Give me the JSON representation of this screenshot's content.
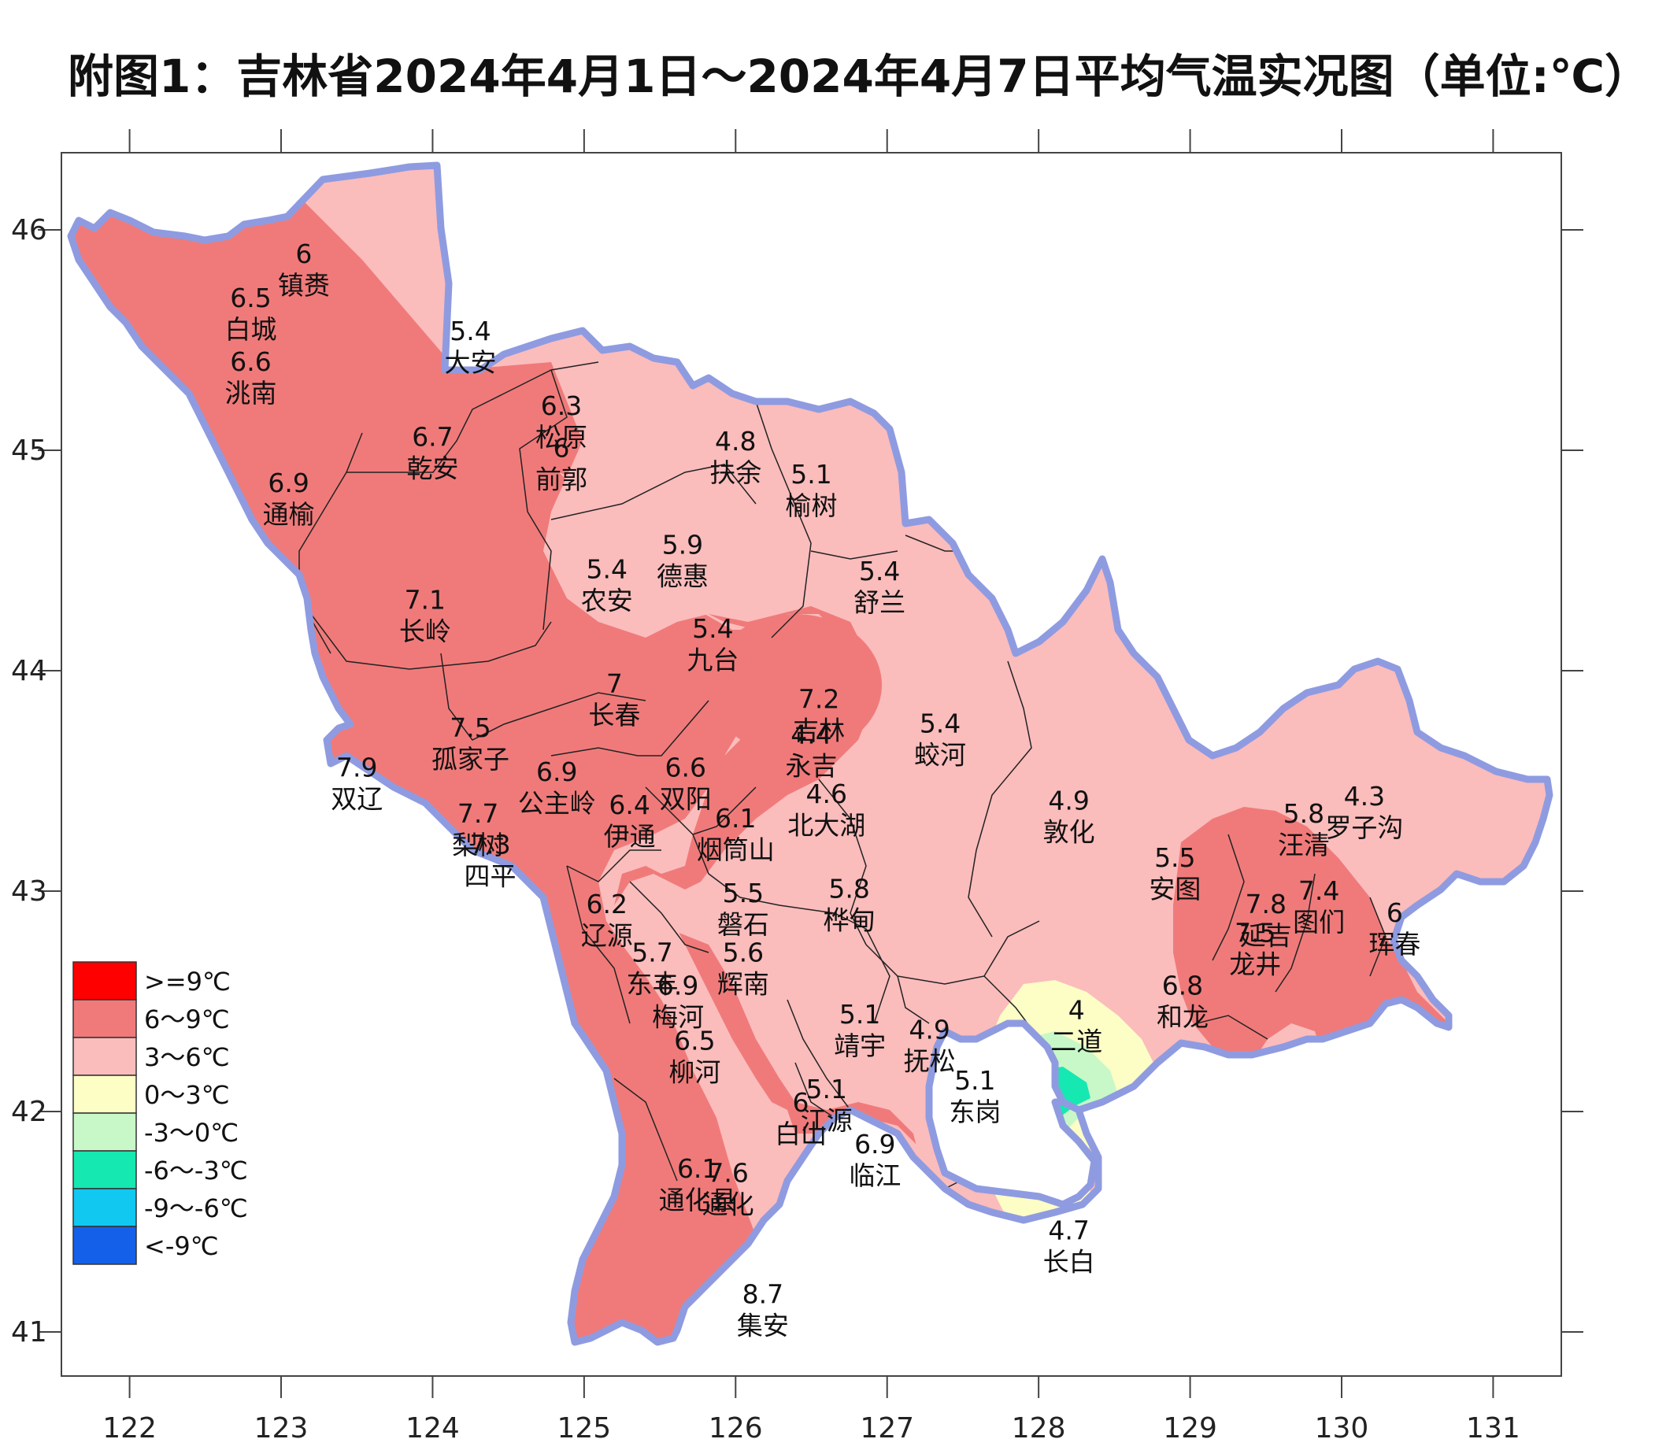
{
  "title": "附图1：吉林省2024年4月1日～2024年4月7日平均气温实况图（单位:℃）",
  "axes": {
    "lon_ticks": [
      "122",
      "123",
      "124",
      "125",
      "126",
      "127",
      "128",
      "129",
      "130",
      "131"
    ],
    "lat_ticks": [
      "46",
      "45",
      "44",
      "43",
      "42",
      "41"
    ],
    "lon_range": [
      121.55,
      131.45
    ],
    "lat_range": [
      40.8,
      46.35
    ]
  },
  "colors": {
    "band_9_plus": "#ff0000",
    "band_6_9": "#f07a7a",
    "band_3_6": "#fbbcbc",
    "band_0_3": "#fdfdc6",
    "band_m3_0": "#c8f8c8",
    "band_m6_m3": "#16e8b2",
    "band_m9_m6": "#10c8f0",
    "band_lt_m9": "#1460e8",
    "province_border": "#8f9be0",
    "county_line": "#222222"
  },
  "legend": [
    {
      "label": ">=9℃",
      "color": "#ff0000"
    },
    {
      "label": "6～9℃",
      "color": "#f07a7a"
    },
    {
      "label": "3～6℃",
      "color": "#fbbcbc"
    },
    {
      "label": "0～3℃",
      "color": "#fdfdc6"
    },
    {
      "label": "-3～0℃",
      "color": "#c8f8c8"
    },
    {
      "label": "-6～-3℃",
      "color": "#16e8b2"
    },
    {
      "label": "-9～-6℃",
      "color": "#10c8f0"
    },
    {
      "label": "<-9℃",
      "color": "#1460e8"
    }
  ],
  "stations": [
    {
      "name": "镇赉",
      "value": "6",
      "lon": 123.15,
      "lat": 45.85
    },
    {
      "name": "白城",
      "value": "6.5",
      "lon": 122.8,
      "lat": 45.65
    },
    {
      "name": "洮南",
      "value": "6.6",
      "lon": 122.8,
      "lat": 45.36
    },
    {
      "name": "大安",
      "value": "5.4",
      "lon": 124.25,
      "lat": 45.5
    },
    {
      "name": "松原",
      "value": "6.3",
      "lon": 124.85,
      "lat": 45.16
    },
    {
      "name": "乾安",
      "value": "6.7",
      "lon": 124.0,
      "lat": 45.02
    },
    {
      "name": "前郭",
      "value": "6",
      "lon": 124.85,
      "lat": 44.97
    },
    {
      "name": "通榆",
      "value": "6.9",
      "lon": 123.05,
      "lat": 44.81
    },
    {
      "name": "扶余",
      "value": "4.8",
      "lon": 126.0,
      "lat": 45.0
    },
    {
      "name": "榆树",
      "value": "5.1",
      "lon": 126.5,
      "lat": 44.85
    },
    {
      "name": "德惠",
      "value": "5.9",
      "lon": 125.65,
      "lat": 44.53
    },
    {
      "name": "农安",
      "value": "5.4",
      "lon": 125.15,
      "lat": 44.42
    },
    {
      "name": "九台",
      "value": "5.4",
      "lon": 125.85,
      "lat": 44.15
    },
    {
      "name": "舒兰",
      "value": "5.4",
      "lon": 126.95,
      "lat": 44.41
    },
    {
      "name": "长岭",
      "value": "7.1",
      "lon": 123.95,
      "lat": 44.28
    },
    {
      "name": "长春",
      "value": "7",
      "lon": 125.2,
      "lat": 43.9
    },
    {
      "name": "孤家子",
      "value": "7.5",
      "lon": 124.25,
      "lat": 43.7
    },
    {
      "name": "吉林",
      "value": "7.2",
      "lon": 126.55,
      "lat": 43.83
    },
    {
      "name": "蛟河",
      "value": "5.4",
      "lon": 127.35,
      "lat": 43.72
    },
    {
      "name": "双辽",
      "value": "7.9",
      "lon": 123.5,
      "lat": 43.52
    },
    {
      "name": "公主岭",
      "value": "6.9",
      "lon": 124.82,
      "lat": 43.5
    },
    {
      "name": "双阳",
      "value": "6.6",
      "lon": 125.67,
      "lat": 43.52
    },
    {
      "name": "永吉",
      "value": "4.4",
      "lon": 126.5,
      "lat": 43.67
    },
    {
      "name": "北大湖",
      "value": "4.6",
      "lon": 126.6,
      "lat": 43.4
    },
    {
      "name": "梨树",
      "value": "7.7",
      "lon": 124.3,
      "lat": 43.31
    },
    {
      "name": "伊通",
      "value": "6.4",
      "lon": 125.3,
      "lat": 43.35
    },
    {
      "name": "烟筒山",
      "value": "6.1",
      "lon": 126.0,
      "lat": 43.29
    },
    {
      "name": "敦化",
      "value": "4.9",
      "lon": 128.2,
      "lat": 43.37
    },
    {
      "name": "四平",
      "value": "7.3",
      "lon": 124.38,
      "lat": 43.17
    },
    {
      "name": "罗子沟",
      "value": "4.3",
      "lon": 130.15,
      "lat": 43.39
    },
    {
      "name": "汪清",
      "value": "5.8",
      "lon": 129.75,
      "lat": 43.31
    },
    {
      "name": "安图",
      "value": "5.5",
      "lon": 128.9,
      "lat": 43.11
    },
    {
      "name": "辽源",
      "value": "6.2",
      "lon": 125.15,
      "lat": 42.9
    },
    {
      "name": "磐石",
      "value": "5.5",
      "lon": 126.05,
      "lat": 42.95
    },
    {
      "name": "桦甸",
      "value": "5.8",
      "lon": 126.75,
      "lat": 42.97
    },
    {
      "name": "延吉",
      "value": "7.8",
      "lon": 129.5,
      "lat": 42.9
    },
    {
      "name": "图们",
      "value": "7.4",
      "lon": 129.85,
      "lat": 42.96
    },
    {
      "name": "珲春",
      "value": "6",
      "lon": 130.35,
      "lat": 42.86
    },
    {
      "name": "龙井",
      "value": "7.5",
      "lon": 129.43,
      "lat": 42.77
    },
    {
      "name": "东丰",
      "value": "5.7",
      "lon": 125.45,
      "lat": 42.68
    },
    {
      "name": "辉南",
      "value": "5.6",
      "lon": 126.05,
      "lat": 42.68
    },
    {
      "name": "二道",
      "value": "4",
      "lon": 128.25,
      "lat": 42.42
    },
    {
      "name": "和龙",
      "value": "6.8",
      "lon": 128.95,
      "lat": 42.53
    },
    {
      "name": "梅河",
      "value": "6.9",
      "lon": 125.62,
      "lat": 42.53
    },
    {
      "name": "柳河",
      "value": "6.5",
      "lon": 125.73,
      "lat": 42.28
    },
    {
      "name": "靖宇",
      "value": "5.1",
      "lon": 126.82,
      "lat": 42.4
    },
    {
      "name": "抚松",
      "value": "4.9",
      "lon": 127.28,
      "lat": 42.33
    },
    {
      "name": "东岗",
      "value": "5.1",
      "lon": 127.58,
      "lat": 42.1
    },
    {
      "name": "白山",
      "value": "6",
      "lon": 126.43,
      "lat": 42.0
    },
    {
      "name": "江源",
      "value": "5.1",
      "lon": 126.6,
      "lat": 42.06
    },
    {
      "name": "临江",
      "value": "6.9",
      "lon": 126.92,
      "lat": 41.81
    },
    {
      "name": "通化县",
      "value": "6.1",
      "lon": 125.75,
      "lat": 41.7
    },
    {
      "name": "通化",
      "value": "7.6",
      "lon": 125.95,
      "lat": 41.68
    },
    {
      "name": "长白",
      "value": "4.7",
      "lon": 128.2,
      "lat": 41.42
    },
    {
      "name": "集安",
      "value": "8.7",
      "lon": 126.18,
      "lat": 41.13
    }
  ]
}
